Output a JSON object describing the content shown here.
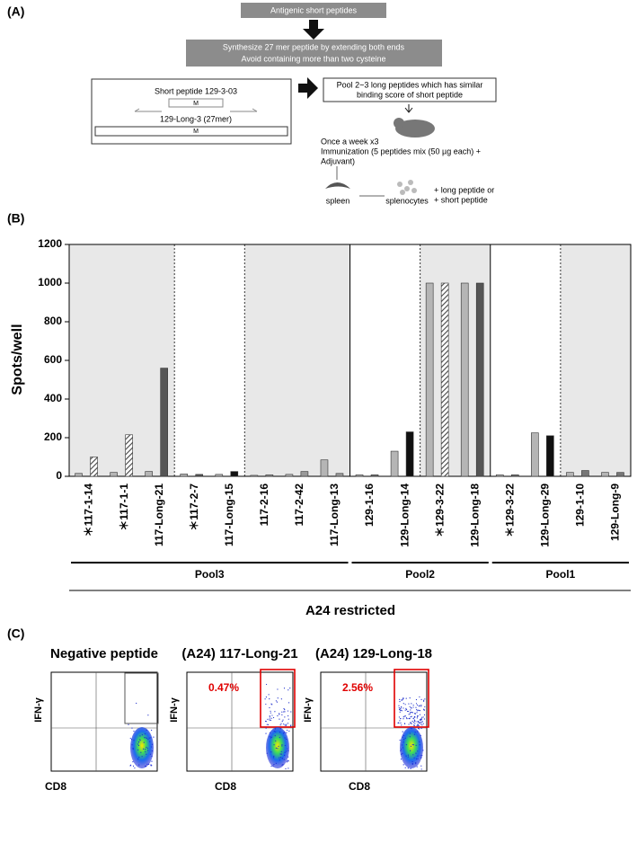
{
  "panel_a": {
    "label": "(A)",
    "step1": "Antigenic short peptides",
    "step2_line1": "Synthesize 27 mer peptide by extending both ends",
    "step2_line2": "Avoid containing more than two cysteine",
    "short_peptide": "Short peptide 129-3-03",
    "long_peptide": "129-Long-3  (27mer)",
    "motif": "M",
    "pool_line1": "Pool 2~3 long peptides which has similar",
    "pool_line2": "binding score of short peptide",
    "immun_line1": "Once a week x3",
    "immun_line2": "Immunization  (5 peptides mix (50 µg each) +",
    "immun_line3": "Adjuvant)",
    "spleen": "spleen",
    "splenocytes": "splenocytes",
    "stim_line1": "+ long peptide or",
    "stim_line2": "+ short peptide"
  },
  "chart_data": {
    "type": "bar",
    "panel_label": "(B)",
    "ylabel": "Spots/well",
    "categories": [
      "＊117-1-14",
      "＊117-1-1",
      "117-Long-21",
      "＊117-2-7",
      "117-Long-15",
      "117-2-16",
      "117-2-42",
      "117-Long-13",
      "129-1-16",
      "129-Long-14",
      "＊129-3-22",
      "129-Long-18",
      "＊129-3-22",
      "129-Long-29",
      "129-1-10",
      "129-Long-9"
    ],
    "series": [
      {
        "color": "#b5b5b5",
        "values": [
          15,
          20,
          25,
          12,
          10,
          5,
          10,
          85,
          8,
          130,
          1000,
          1000,
          8,
          225,
          20,
          20
        ]
      },
      {
        "colors": [
          "hatch",
          "hatch",
          "#555555",
          "#555555",
          "#111111",
          "#999999",
          "#999999",
          "#999999",
          "#777777",
          "#111111",
          "hatch",
          "#555555",
          "#777777",
          "#111111",
          "#777777",
          "#777777"
        ],
        "values": [
          100,
          215,
          560,
          10,
          25,
          8,
          25,
          15,
          8,
          230,
          1000,
          1000,
          8,
          210,
          30,
          20
        ]
      }
    ],
    "ylim": [
      0,
      1200
    ],
    "yticks": [
      0,
      200,
      400,
      600,
      800,
      1000,
      1200
    ],
    "groups": [
      {
        "label": "Pool3",
        "start": 0,
        "end": 7
      },
      {
        "label": "Pool2",
        "start": 8,
        "end": 11
      },
      {
        "label": "Pool1",
        "start": 12,
        "end": 15
      }
    ],
    "restriction": "A24 restricted"
  },
  "panel_c": {
    "label": "(C)",
    "plots": [
      {
        "title": "Negative peptide"
      },
      {
        "title": "(A24) 117-Long-21",
        "percent": "0.47%"
      },
      {
        "title": "(A24) 129-Long-18",
        "percent": "2.56%"
      }
    ],
    "ylabel": "IFN-γ",
    "xlabel": "CD8"
  }
}
